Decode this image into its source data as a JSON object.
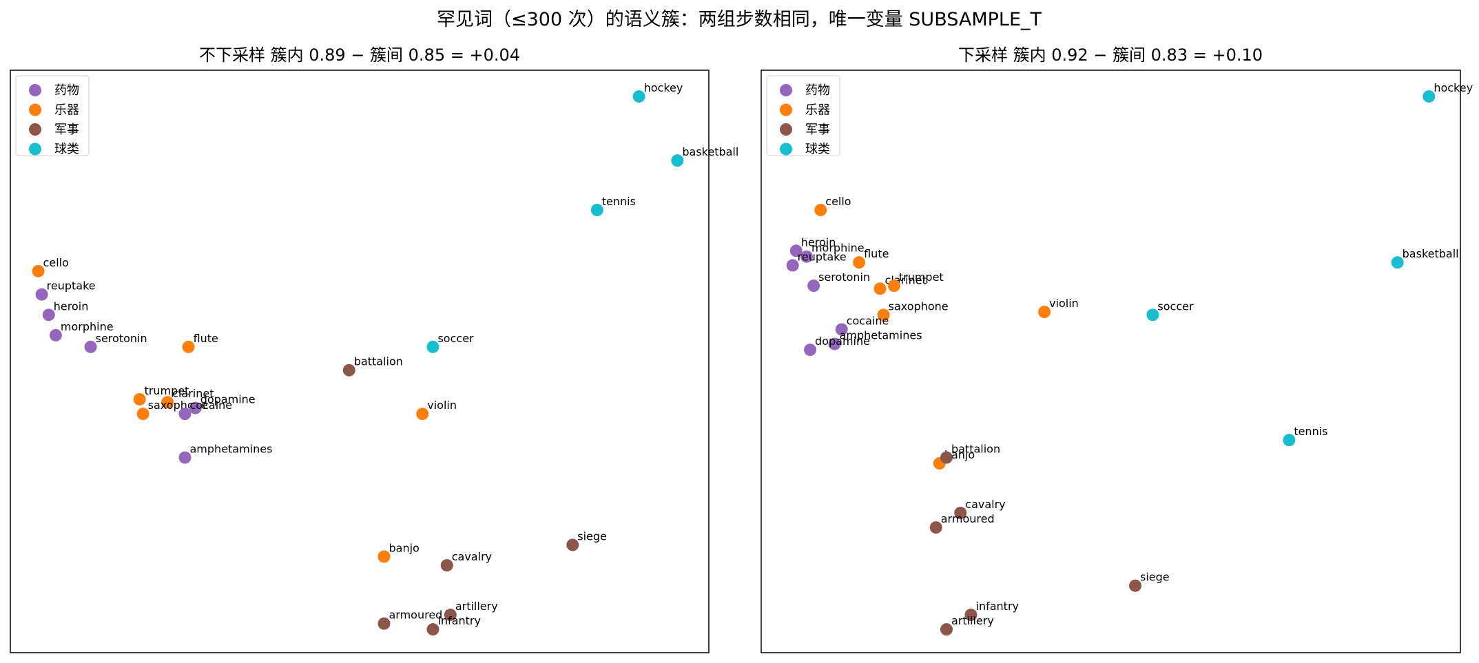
{
  "figure": {
    "suptitle": "罕见词（≤300 次）的语义簇：两组步数相同，唯一变量 SUBSAMPLE_T"
  },
  "legend": {
    "placement": "upper-left",
    "entries": [
      {
        "label": "药物",
        "color": "#9467bd"
      },
      {
        "label": "乐器",
        "color": "#ff7f0e"
      },
      {
        "label": "军事",
        "color": "#8c564b"
      },
      {
        "label": "球类",
        "color": "#17becf"
      }
    ]
  },
  "chart_data": [
    {
      "type": "scatter",
      "title": "不下采样   簇内 0.89 − 簇间 0.85 = +0.04",
      "xlabel": "",
      "ylabel": "",
      "xlim": [
        -1.0,
        1.0
      ],
      "ylim": [
        -1.0,
        1.0
      ],
      "grid": false,
      "axis_ticks": false,
      "points": [
        {
          "label": "hockey",
          "cluster": "球类",
          "x": 0.8,
          "y": 0.91
        },
        {
          "label": "basketball",
          "cluster": "球类",
          "x": 0.91,
          "y": 0.69
        },
        {
          "label": "tennis",
          "cluster": "球类",
          "x": 0.68,
          "y": 0.52
        },
        {
          "label": "soccer",
          "cluster": "球类",
          "x": 0.21,
          "y": 0.05
        },
        {
          "label": "cello",
          "cluster": "乐器",
          "x": -0.92,
          "y": 0.31
        },
        {
          "label": "flute",
          "cluster": "乐器",
          "x": -0.49,
          "y": 0.05
        },
        {
          "label": "trumpet",
          "cluster": "乐器",
          "x": -0.63,
          "y": -0.13
        },
        {
          "label": "clarinet",
          "cluster": "乐器",
          "x": -0.55,
          "y": -0.14
        },
        {
          "label": "saxophone",
          "cluster": "乐器",
          "x": -0.62,
          "y": -0.18
        },
        {
          "label": "violin",
          "cluster": "乐器",
          "x": 0.18,
          "y": -0.18
        },
        {
          "label": "banjo",
          "cluster": "乐器",
          "x": 0.07,
          "y": -0.67
        },
        {
          "label": "reuptake",
          "cluster": "药物",
          "x": -0.91,
          "y": 0.23
        },
        {
          "label": "heroin",
          "cluster": "药物",
          "x": -0.89,
          "y": 0.16
        },
        {
          "label": "morphine",
          "cluster": "药物",
          "x": -0.87,
          "y": 0.09
        },
        {
          "label": "serotonin",
          "cluster": "药物",
          "x": -0.77,
          "y": 0.05
        },
        {
          "label": "dopamine",
          "cluster": "药物",
          "x": -0.47,
          "y": -0.16
        },
        {
          "label": "cocaine",
          "cluster": "药物",
          "x": -0.5,
          "y": -0.18
        },
        {
          "label": "amphetamines",
          "cluster": "药物",
          "x": -0.5,
          "y": -0.33
        },
        {
          "label": "battalion",
          "cluster": "军事",
          "x": -0.03,
          "y": -0.03
        },
        {
          "label": "siege",
          "cluster": "军事",
          "x": 0.61,
          "y": -0.63
        },
        {
          "label": "cavalry",
          "cluster": "军事",
          "x": 0.25,
          "y": -0.7
        },
        {
          "label": "artillery",
          "cluster": "军事",
          "x": 0.26,
          "y": -0.87
        },
        {
          "label": "armoured",
          "cluster": "军事",
          "x": 0.07,
          "y": -0.9
        },
        {
          "label": "infantry",
          "cluster": "军事",
          "x": 0.21,
          "y": -0.92
        }
      ]
    },
    {
      "type": "scatter",
      "title": "下采样   簇内 0.92 − 簇间 0.83 = +0.10",
      "xlabel": "",
      "ylabel": "",
      "xlim": [
        -1.0,
        1.0
      ],
      "ylim": [
        -1.0,
        1.0
      ],
      "grid": false,
      "axis_ticks": false,
      "points": [
        {
          "label": "hockey",
          "cluster": "球类",
          "x": 0.91,
          "y": 0.91
        },
        {
          "label": "basketball",
          "cluster": "球类",
          "x": 0.82,
          "y": 0.34
        },
        {
          "label": "soccer",
          "cluster": "球类",
          "x": 0.12,
          "y": 0.16
        },
        {
          "label": "tennis",
          "cluster": "球类",
          "x": 0.51,
          "y": -0.27
        },
        {
          "label": "cello",
          "cluster": "乐器",
          "x": -0.83,
          "y": 0.52
        },
        {
          "label": "flute",
          "cluster": "乐器",
          "x": -0.72,
          "y": 0.34
        },
        {
          "label": "clarinet",
          "cluster": "乐器",
          "x": -0.66,
          "y": 0.25
        },
        {
          "label": "trumpet",
          "cluster": "乐器",
          "x": -0.62,
          "y": 0.26
        },
        {
          "label": "saxophone",
          "cluster": "乐器",
          "x": -0.65,
          "y": 0.16
        },
        {
          "label": "violin",
          "cluster": "乐器",
          "x": -0.19,
          "y": 0.17
        },
        {
          "label": "banjo",
          "cluster": "乐器",
          "x": -0.49,
          "y": -0.35
        },
        {
          "label": "heroin",
          "cluster": "药物",
          "x": -0.9,
          "y": 0.38
        },
        {
          "label": "morphine",
          "cluster": "药物",
          "x": -0.87,
          "y": 0.36
        },
        {
          "label": "reuptake",
          "cluster": "药物",
          "x": -0.91,
          "y": 0.33
        },
        {
          "label": "serotonin",
          "cluster": "药物",
          "x": -0.85,
          "y": 0.26
        },
        {
          "label": "cocaine",
          "cluster": "药物",
          "x": -0.77,
          "y": 0.11
        },
        {
          "label": "amphetamines",
          "cluster": "药物",
          "x": -0.79,
          "y": 0.06
        },
        {
          "label": "dopamine",
          "cluster": "药物",
          "x": -0.86,
          "y": 0.04
        },
        {
          "label": "battalion",
          "cluster": "军事",
          "x": -0.47,
          "y": -0.33
        },
        {
          "label": "cavalry",
          "cluster": "军事",
          "x": -0.43,
          "y": -0.52
        },
        {
          "label": "armoured",
          "cluster": "军事",
          "x": -0.5,
          "y": -0.57
        },
        {
          "label": "siege",
          "cluster": "军事",
          "x": 0.07,
          "y": -0.77
        },
        {
          "label": "infantry",
          "cluster": "军事",
          "x": -0.4,
          "y": -0.87
        },
        {
          "label": "artillery",
          "cluster": "军事",
          "x": -0.47,
          "y": -0.92
        }
      ]
    }
  ]
}
